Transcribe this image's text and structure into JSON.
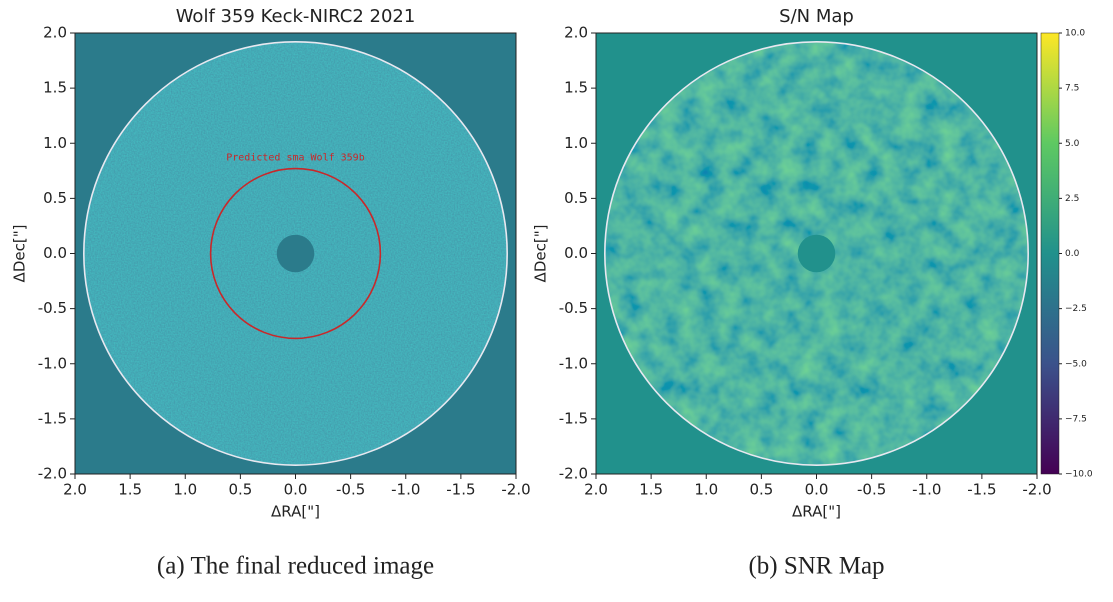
{
  "chart_data": [
    {
      "type": "image",
      "title": "Wolf 359 Keck-NIRC2 2021",
      "x_label": "ΔRA[\"]",
      "y_label": "ΔDec[\"]",
      "caption": "(a) The final reduced image",
      "color": "#2b7b8b",
      "xlim": [
        2,
        -2
      ],
      "ylim": [
        -2,
        2
      ],
      "xticks": [
        {
          "value": 2,
          "label": "2.0"
        },
        1.5,
        {
          "value": 1,
          "label": "1.0"
        },
        0.5,
        {
          "value": 0,
          "label": "0.0"
        },
        -0.5,
        {
          "value": -1,
          "label": "-1.0"
        },
        -1.5,
        {
          "value": -2,
          "label": "-2.0"
        }
      ],
      "yticks": [
        {
          "value": -2,
          "label": "-2.0"
        },
        -1.5,
        {
          "value": -1,
          "label": "-1.0"
        },
        -0.5,
        {
          "value": 0,
          "label": "0.0"
        },
        0.5,
        {
          "value": 1,
          "label": "1.0"
        },
        1.5,
        {
          "value": 2,
          "label": "2.0"
        }
      ],
      "circles": [
        {
          "radius": 1.92,
          "color": "#e8e8f0"
        },
        {
          "radius": 0.77,
          "color": "#c8282a",
          "label": "Predicted sma Wolf 359b"
        }
      ]
    },
    {
      "type": "image",
      "title": "S/N Map",
      "x_label": "ΔRA[\"]",
      "y_label": "ΔDec[\"]",
      "caption": "(b) SNR Map",
      "color": "#21918c",
      "xlim": [
        2,
        -2
      ],
      "ylim": [
        -2,
        2
      ],
      "xticks": [
        {
          "value": 2,
          "label": "2.0"
        },
        1.5,
        {
          "value": 1,
          "label": "1.0"
        },
        0.5,
        {
          "value": 0,
          "label": "0.0"
        },
        -0.5,
        {
          "value": -1,
          "label": "-1.0"
        },
        -1.5,
        {
          "value": -2,
          "label": "-2.0"
        }
      ],
      "yticks": [
        {
          "value": -2,
          "label": "-2.0"
        },
        -1.5,
        {
          "value": -1,
          "label": "-1.0"
        },
        -0.5,
        {
          "value": 0,
          "label": "0.0"
        },
        0.5,
        {
          "value": 1,
          "label": "1.0"
        },
        1.5,
        {
          "value": 2,
          "label": "2.0"
        }
      ],
      "circles": [
        {
          "radius": 1.92,
          "color": "#e8e8f0"
        }
      ],
      "colorbar": {
        "colormap": [
          "#440154",
          "#3b528b",
          "#21918c",
          "#5ec962",
          "#fde725"
        ],
        "lim": [
          -10,
          10
        ],
        "ticks": [
          {
            "value": 10,
            "label": "10.0"
          },
          7.5,
          {
            "value": 5,
            "label": "5.0"
          },
          {
            "value": 2.5,
            "label": "2.5"
          },
          {
            "value": 0,
            "label": "0.0"
          },
          {
            "value": -2.5,
            "label": "−2.5"
          },
          {
            "value": -5,
            "label": "−5.0"
          },
          {
            "value": -7.5,
            "label": "−7.5"
          },
          {
            "value": -10,
            "label": "−10.0"
          }
        ]
      }
    }
  ]
}
